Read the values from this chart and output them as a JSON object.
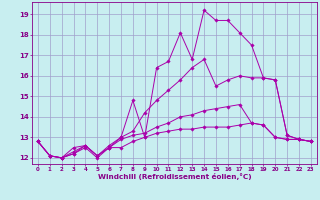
{
  "xlabel": "Windchill (Refroidissement éolien,°C)",
  "background_color": "#c8eef0",
  "grid_color": "#a0a0cc",
  "line_color": "#aa00aa",
  "xlim": [
    -0.5,
    23.5
  ],
  "ylim": [
    11.7,
    19.6
  ],
  "xticks": [
    0,
    1,
    2,
    3,
    4,
    5,
    6,
    7,
    8,
    9,
    10,
    11,
    12,
    13,
    14,
    15,
    16,
    17,
    18,
    19,
    20,
    21,
    22,
    23
  ],
  "yticks": [
    12,
    13,
    14,
    15,
    16,
    17,
    18,
    19
  ],
  "series": [
    [
      12.8,
      12.1,
      12.0,
      12.2,
      12.5,
      12.0,
      12.5,
      12.5,
      12.8,
      13.0,
      13.2,
      13.3,
      13.4,
      13.4,
      13.5,
      13.5,
      13.5,
      13.6,
      13.7,
      13.6,
      13.0,
      12.9,
      12.9,
      12.8
    ],
    [
      12.8,
      12.1,
      12.0,
      12.2,
      12.6,
      12.1,
      12.5,
      12.9,
      13.1,
      13.2,
      13.5,
      13.7,
      14.0,
      14.1,
      14.3,
      14.4,
      14.5,
      14.6,
      13.7,
      13.6,
      13.0,
      12.9,
      12.9,
      12.8
    ],
    [
      12.8,
      12.1,
      12.0,
      12.3,
      12.6,
      12.1,
      12.5,
      13.0,
      13.3,
      14.2,
      14.8,
      15.3,
      15.8,
      16.4,
      16.8,
      15.5,
      15.8,
      16.0,
      15.9,
      15.9,
      15.8,
      13.1,
      12.9,
      12.8
    ],
    [
      12.8,
      12.1,
      12.0,
      12.5,
      12.6,
      12.1,
      12.6,
      13.0,
      14.8,
      13.0,
      16.4,
      16.7,
      18.1,
      16.8,
      19.2,
      18.7,
      18.7,
      18.1,
      17.5,
      15.9,
      15.8,
      13.1,
      12.9,
      12.8
    ]
  ]
}
